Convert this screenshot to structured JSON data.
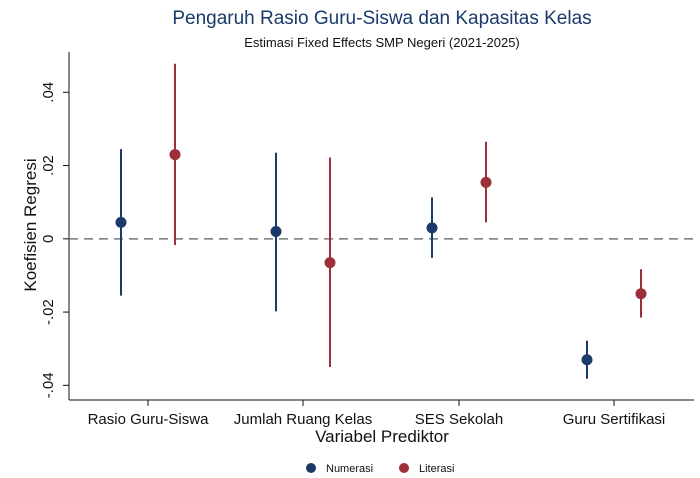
{
  "chart_data": {
    "type": "scatter",
    "title": "Pengaruh Rasio Guru-Siswa dan Kapasitas Kelas",
    "subtitle": "Estimasi Fixed Effects SMP Negeri (2021-2025)",
    "xlabel": "Variabel Prediktor",
    "ylabel": "Koefisien Regresi",
    "categories": [
      "Rasio Guru-Siswa",
      "Jumlah Ruang Kelas",
      "SES Sekolah",
      "Guru Sertifikasi"
    ],
    "ylim": [
      -0.044,
      0.051
    ],
    "yticks": [
      -0.04,
      -0.02,
      0,
      0.02,
      0.04
    ],
    "ytick_labels": [
      "-.04",
      "-.02",
      "0",
      ".02",
      ".04"
    ],
    "reference_line": 0,
    "series": [
      {
        "name": "Numerasi",
        "color": "#1a3a6b",
        "values": [
          0.0045,
          0.002,
          0.003,
          -0.033
        ],
        "ci_low": [
          -0.0155,
          -0.0198,
          -0.0052,
          -0.0382
        ],
        "ci_high": [
          0.0245,
          0.0235,
          0.0113,
          -0.0278
        ]
      },
      {
        "name": "Literasi",
        "color": "#9b3038",
        "values": [
          0.023,
          -0.0065,
          0.0154,
          -0.015
        ],
        "ci_low": [
          -0.0017,
          -0.035,
          0.0045,
          -0.0215
        ],
        "ci_high": [
          0.0478,
          0.0222,
          0.0265,
          -0.0083
        ]
      }
    ],
    "legend_position": "bottom",
    "grid": false
  }
}
